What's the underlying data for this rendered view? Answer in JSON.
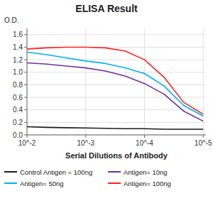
{
  "chart_data": {
    "type": "line",
    "title": "ELISA Result",
    "y_label": "O.D.",
    "x_label": "Serial Dilutions of Antibody",
    "x": [
      0.01,
      0.004641588833612777,
      0.002154434690031882,
      0.001,
      0.00046415888336127773,
      0.00021544346900318823,
      0.0001,
      4.641588833612773e-05,
      2.1544346900318823e-05,
      1e-05
    ],
    "series": [
      {
        "name": "Control Antigen = 100ng",
        "color": "#1a1a1a",
        "values": [
          0.13,
          0.12,
          0.115,
          0.11,
          0.105,
          0.1,
          0.1,
          0.09,
          0.09,
          0.09
        ]
      },
      {
        "name": "Antigen= 10ng",
        "color": "#7030a0",
        "values": [
          1.15,
          1.13,
          1.1,
          1.07,
          1.02,
          0.94,
          0.82,
          0.65,
          0.38,
          0.22
        ]
      },
      {
        "name": "Antigen= 50ng",
        "color": "#00b0f0",
        "values": [
          1.32,
          1.28,
          1.23,
          1.18,
          1.14,
          1.07,
          0.98,
          0.78,
          0.47,
          0.3
        ]
      },
      {
        "name": "Antigen= 100ng",
        "color": "#ff2020",
        "values": [
          1.37,
          1.39,
          1.4,
          1.4,
          1.39,
          1.34,
          1.2,
          0.92,
          0.52,
          0.33
        ]
      }
    ],
    "log": "x",
    "xlim": [
      0.01,
      9e-06
    ],
    "xticks": [
      {
        "value": 0.01,
        "label": "10^-2"
      },
      {
        "value": 0.001,
        "label": "10^-3"
      },
      {
        "value": 0.0001,
        "label": "10^-4"
      },
      {
        "value": 1e-05,
        "label": "10^-5"
      }
    ],
    "ylim": [
      0,
      1.7
    ],
    "yticks": [
      {
        "value": 0,
        "label": "0.0"
      },
      0.2,
      0.4,
      0.6,
      0.8,
      {
        "value": 1.0,
        "label": "1.0"
      },
      1.2,
      1.4,
      1.6
    ],
    "grid": true,
    "legend": "bottom"
  }
}
